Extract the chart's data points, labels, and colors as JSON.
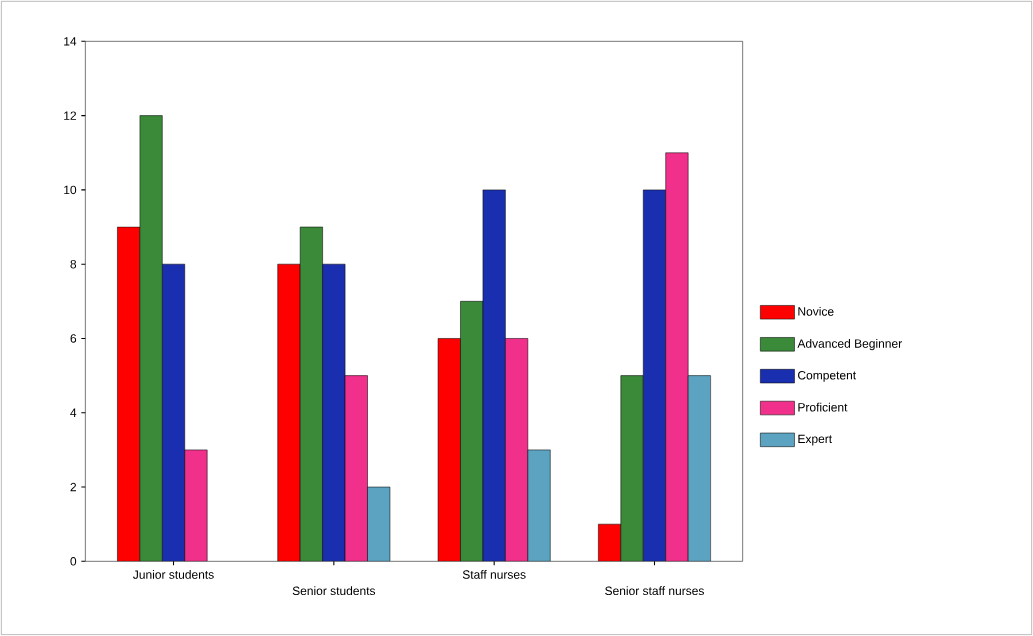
{
  "chart_data": {
    "type": "bar",
    "categories": [
      "Junior students",
      "Senior students",
      "Staff nurses",
      "Senior staff nurses"
    ],
    "series": [
      {
        "name": "Novice",
        "color": "#ff0000",
        "values": [
          9,
          8,
          6,
          1
        ]
      },
      {
        "name": "Advanced Beginner",
        "color": "#3a8a3a",
        "values": [
          12,
          9,
          7,
          5
        ]
      },
      {
        "name": "Competent",
        "color": "#1a2fb0",
        "values": [
          8,
          8,
          10,
          10
        ]
      },
      {
        "name": "Proficient",
        "color": "#f0308a",
        "values": [
          3,
          5,
          6,
          11
        ]
      },
      {
        "name": "Expert",
        "color": "#5ba3c0",
        "values": [
          null,
          2,
          3,
          5
        ]
      }
    ],
    "ylim": [
      0,
      14
    ],
    "yticks": [
      0,
      2,
      4,
      6,
      8,
      10,
      12,
      14
    ],
    "grid": false,
    "legend": "right"
  }
}
